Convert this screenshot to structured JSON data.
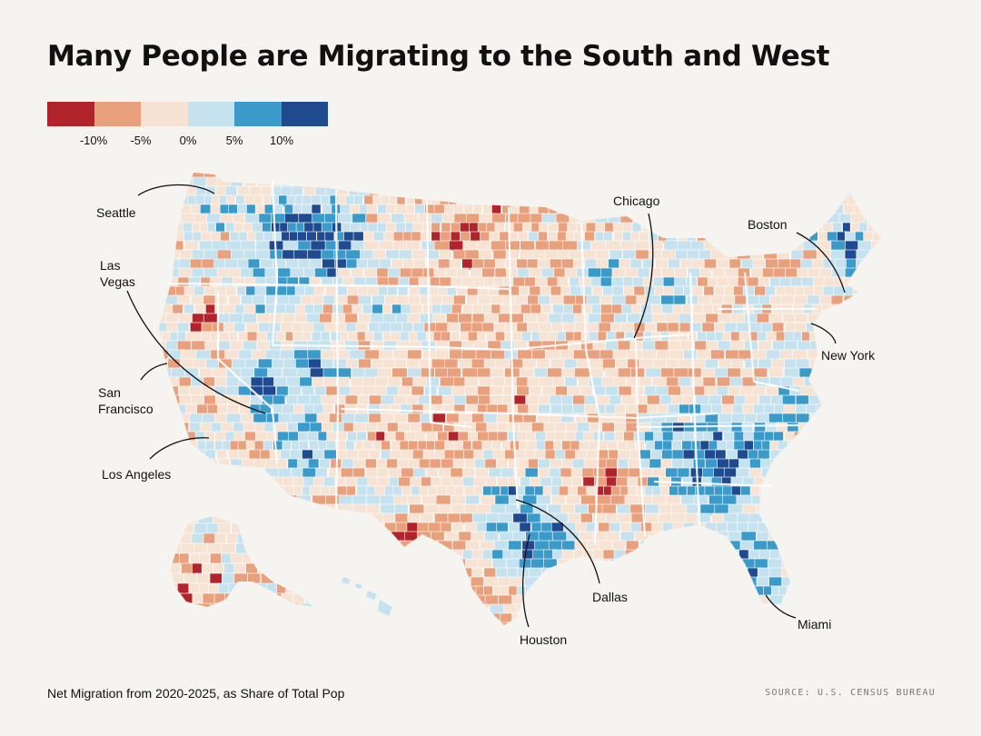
{
  "title": "Many People are Migrating to the South and West",
  "legend": {
    "colors": [
      "#b2242c",
      "#e9a07c",
      "#f6e3d4",
      "#c5e2ee",
      "#3a9ac9",
      "#1f4a8f"
    ],
    "ticks": [
      "-10%",
      "-5%",
      "0%",
      "5%",
      "10%"
    ]
  },
  "cities": [
    {
      "id": "seattle",
      "lines": [
        "Seattle"
      ]
    },
    {
      "id": "las-vegas",
      "lines": [
        "Las",
        "Vegas"
      ]
    },
    {
      "id": "san-francisco",
      "lines": [
        "San",
        "Francisco"
      ]
    },
    {
      "id": "los-angeles",
      "lines": [
        "Los Angeles"
      ]
    },
    {
      "id": "chicago",
      "lines": [
        "Chicago"
      ]
    },
    {
      "id": "boston",
      "lines": [
        "Boston"
      ]
    },
    {
      "id": "new-york",
      "lines": [
        "New York"
      ]
    },
    {
      "id": "dallas",
      "lines": [
        "Dallas"
      ]
    },
    {
      "id": "houston",
      "lines": [
        "Houston"
      ]
    },
    {
      "id": "miami",
      "lines": [
        "Miami"
      ]
    }
  ],
  "caption": "Net Migration from 2020-2025, as Share of Total Pop",
  "source": "SOURCE: U.S. CENSUS BUREAU"
}
